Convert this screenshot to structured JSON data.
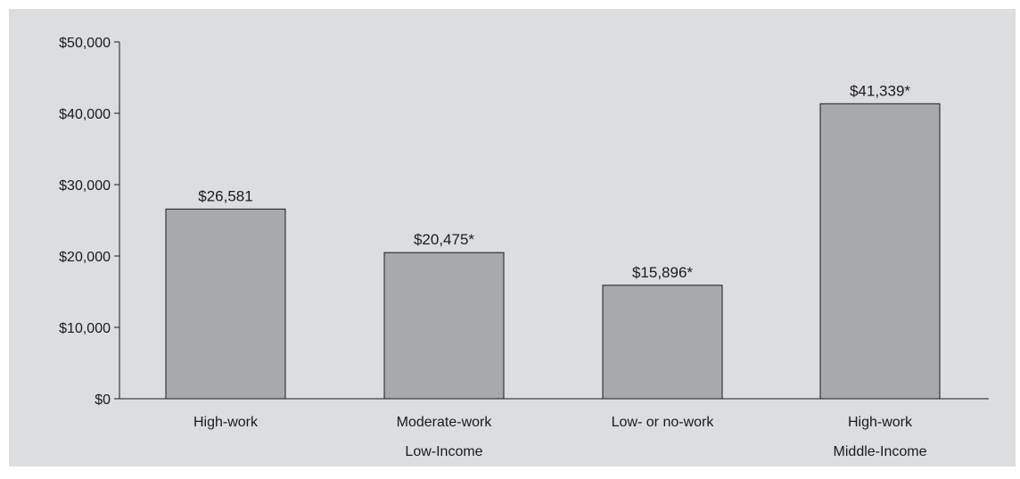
{
  "chart_data": {
    "type": "bar",
    "categories": [
      "High-work",
      "Moderate-work",
      "Low- or no-work",
      "High-work"
    ],
    "values": [
      26581,
      20475,
      15896,
      41339
    ],
    "data_labels": [
      "$26,581",
      "$20,475*",
      "$15,896*",
      "$41,339*"
    ],
    "groups": [
      {
        "label": "Low-Income",
        "categories": [
          0,
          1,
          2
        ]
      },
      {
        "label": "Middle-Income",
        "categories": [
          3
        ]
      }
    ],
    "y_ticks": [
      0,
      10000,
      20000,
      30000,
      40000,
      50000
    ],
    "y_tick_labels": [
      "$0",
      "$10,000",
      "$20,000",
      "$30,000",
      "$40,000",
      "$50,000"
    ],
    "ylim": [
      0,
      50000
    ],
    "grid": false,
    "bar_color": "#a7a9ac",
    "bar_stroke": "#1a1a1a",
    "background": "#dcdddf"
  }
}
